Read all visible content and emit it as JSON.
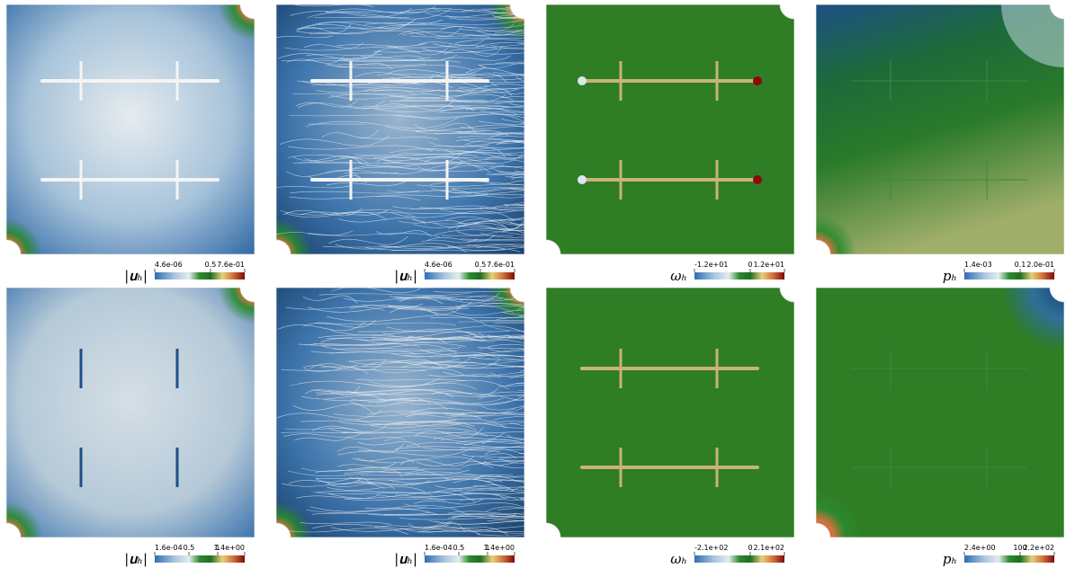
{
  "panels": [
    {
      "colorbar": {
        "label": "|𝐮ₕ|",
        "ticks": [
          "4.6e-06",
          "0.5",
          "7.6e-01"
        ]
      }
    },
    {
      "colorbar": {
        "label": "|𝐮ₕ|",
        "ticks": [
          "4.6e-06",
          "0.5",
          "7.6e-01"
        ]
      }
    },
    {
      "colorbar": {
        "label": "ωₕ",
        "ticks": [
          "-1.2e+01",
          "0",
          "1.2e+01"
        ]
      }
    },
    {
      "colorbar": {
        "label": "pₕ",
        "ticks": [
          "1.4e-03",
          "0.1",
          "2.0e-01"
        ]
      }
    },
    {
      "colorbar": {
        "label": "|𝐮ₕ|",
        "ticks": [
          "1.6e-04",
          "0.5",
          "1",
          "1.4e+00"
        ]
      }
    },
    {
      "colorbar": {
        "label": "|𝐮ₕ|",
        "ticks": [
          "1.6e-04",
          "0.5",
          "1",
          "1.4e+00"
        ]
      }
    },
    {
      "colorbar": {
        "label": "ωₕ",
        "ticks": [
          "-2.1e+02",
          "0",
          "2.1e+02"
        ]
      }
    },
    {
      "colorbar": {
        "label": "pₕ",
        "ticks": [
          "2.4e+00",
          "100",
          "2.2e+02"
        ]
      }
    }
  ]
}
